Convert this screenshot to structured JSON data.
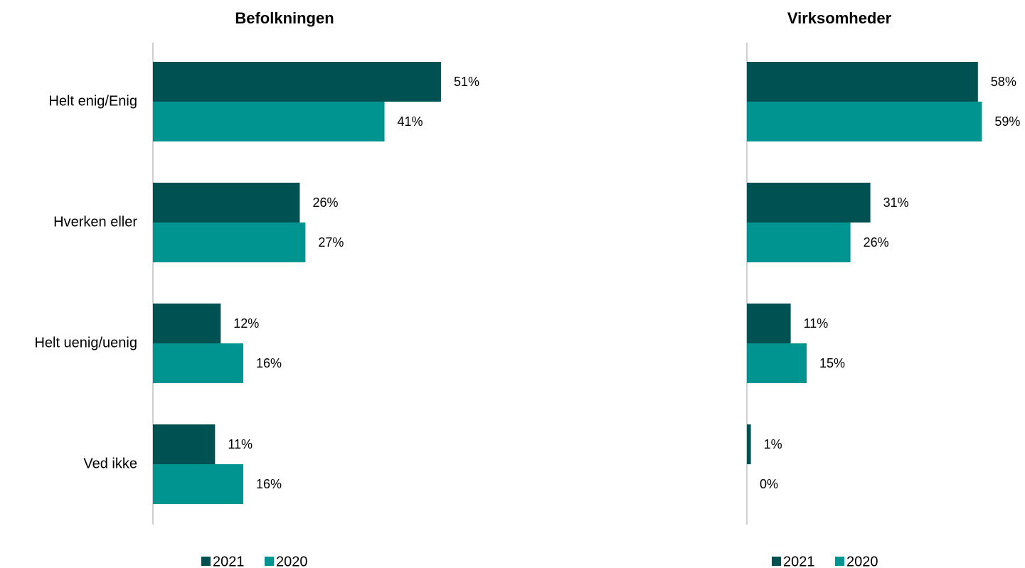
{
  "chart_data": [
    {
      "type": "bar",
      "orientation": "horizontal",
      "title": "Befolkningen",
      "categories": [
        "Helt enig/Enig",
        "Hverken eller",
        "Helt uenig/uenig",
        "Ved ikke"
      ],
      "series": [
        {
          "name": "2021",
          "color": "#005151",
          "values": [
            51,
            26,
            12,
            11
          ],
          "value_labels": [
            "51%",
            "26%",
            "12%",
            "11%"
          ]
        },
        {
          "name": "2020",
          "color": "#009490",
          "values": [
            41,
            27,
            16,
            16
          ],
          "value_labels": [
            "41%",
            "27%",
            "16%",
            "16%"
          ]
        }
      ]
    },
    {
      "type": "bar",
      "orientation": "horizontal",
      "title": "Virksomheder",
      "categories": [
        null,
        null,
        null,
        null
      ],
      "series": [
        {
          "name": "2021",
          "color": "#005151",
          "values": [
            58,
            31,
            11,
            1
          ],
          "value_labels": [
            "58%",
            "31%",
            "11%",
            "1%"
          ]
        },
        {
          "name": "2020",
          "color": "#009490",
          "values": [
            59,
            26,
            15,
            0
          ],
          "value_labels": [
            "59%",
            "26%",
            "15%",
            "0%"
          ]
        }
      ]
    }
  ]
}
